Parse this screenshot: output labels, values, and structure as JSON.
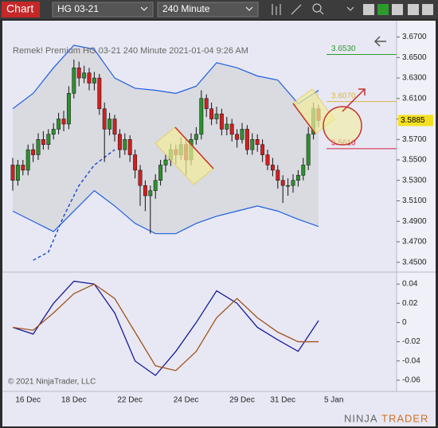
{
  "toolbar": {
    "title": "Chart",
    "instrument": "HG 03-21",
    "interval": "240 Minute"
  },
  "copyright": "© 2021 NinjaTrader, LLC",
  "logo": {
    "a": "NINJA",
    "b": "TRADER"
  },
  "chart_data": {
    "type": "candlestick",
    "title": "Remek!  Premium  HG 03-21  240 Minute  2021-01-04 9:26 AM",
    "categories": [
      null,
      null,
      null,
      "16 Dec",
      null,
      null,
      null,
      null,
      null,
      null,
      null,
      null,
      "18 Dec",
      null,
      null,
      null,
      null,
      null,
      null,
      null,
      null,
      null,
      null,
      "22 Dec",
      null,
      null,
      null,
      null,
      null,
      null,
      null,
      null,
      null,
      null,
      "24 Dec",
      null,
      null,
      null,
      null,
      null,
      null,
      null,
      null,
      null,
      null,
      "29 Dec",
      null,
      null,
      null,
      null,
      null,
      null,
      null,
      "31 Dec",
      null,
      null,
      null,
      null,
      null,
      null,
      null,
      null,
      null,
      "5 Jan"
    ],
    "ohlc": [
      [
        3.545,
        3.552,
        3.52,
        3.53
      ],
      [
        3.53,
        3.55,
        3.525,
        3.545
      ],
      [
        3.545,
        3.55,
        3.535,
        3.54
      ],
      [
        3.54,
        3.565,
        3.535,
        3.56
      ],
      [
        3.56,
        3.566,
        3.548,
        3.555
      ],
      [
        3.555,
        3.576,
        3.55,
        3.57
      ],
      [
        3.57,
        3.578,
        3.56,
        3.565
      ],
      [
        3.565,
        3.58,
        3.56,
        3.575
      ],
      [
        3.575,
        3.586,
        3.57,
        3.58
      ],
      [
        3.58,
        3.596,
        3.575,
        3.59
      ],
      [
        3.59,
        3.598,
        3.578,
        3.585
      ],
      [
        3.585,
        3.622,
        3.58,
        3.615
      ],
      [
        3.615,
        3.648,
        3.61,
        3.64
      ],
      [
        3.64,
        3.646,
        3.622,
        3.63
      ],
      [
        3.63,
        3.642,
        3.625,
        3.635
      ],
      [
        3.635,
        3.64,
        3.618,
        3.625
      ],
      [
        3.625,
        3.636,
        3.618,
        3.63
      ],
      [
        3.63,
        3.634,
        3.594,
        3.6
      ],
      [
        3.6,
        3.606,
        3.548,
        3.58
      ],
      [
        3.58,
        3.596,
        3.574,
        3.59
      ],
      [
        3.59,
        3.594,
        3.568,
        3.575
      ],
      [
        3.575,
        3.58,
        3.552,
        3.56
      ],
      [
        3.56,
        3.576,
        3.555,
        3.57
      ],
      [
        3.57,
        3.574,
        3.548,
        3.555
      ],
      [
        3.555,
        3.56,
        3.532,
        3.54
      ],
      [
        3.54,
        3.545,
        3.505,
        3.525
      ],
      [
        3.525,
        3.53,
        3.5,
        3.515
      ],
      [
        3.515,
        3.525,
        3.478,
        3.52
      ],
      [
        3.52,
        3.536,
        3.512,
        3.53
      ],
      [
        3.53,
        3.55,
        3.525,
        3.545
      ],
      [
        3.545,
        3.556,
        3.538,
        3.55
      ],
      [
        3.55,
        3.566,
        3.544,
        3.56
      ],
      [
        3.56,
        3.565,
        3.546,
        3.555
      ],
      [
        3.555,
        3.572,
        3.55,
        3.565
      ],
      [
        3.565,
        3.57,
        3.535,
        3.55
      ],
      [
        3.55,
        3.576,
        3.545,
        3.57
      ],
      [
        3.57,
        3.582,
        3.565,
        3.575
      ],
      [
        3.575,
        3.618,
        3.57,
        3.61
      ],
      [
        3.61,
        3.614,
        3.592,
        3.6
      ],
      [
        3.6,
        3.606,
        3.584,
        3.59
      ],
      [
        3.59,
        3.602,
        3.585,
        3.595
      ],
      [
        3.595,
        3.6,
        3.574,
        3.58
      ],
      [
        3.58,
        3.592,
        3.574,
        3.585
      ],
      [
        3.585,
        3.59,
        3.568,
        3.575
      ],
      [
        3.575,
        3.58,
        3.562,
        3.57
      ],
      [
        3.57,
        3.586,
        3.566,
        3.58
      ],
      [
        3.58,
        3.584,
        3.555,
        3.56
      ],
      [
        3.56,
        3.576,
        3.555,
        3.57
      ],
      [
        3.57,
        3.575,
        3.558,
        3.565
      ],
      [
        3.565,
        3.57,
        3.548,
        3.555
      ],
      [
        3.555,
        3.56,
        3.54,
        3.545
      ],
      [
        3.545,
        3.552,
        3.534,
        3.54
      ],
      [
        3.54,
        3.545,
        3.522,
        3.53
      ],
      [
        3.53,
        3.535,
        3.508,
        3.525
      ],
      [
        3.525,
        3.532,
        3.515,
        3.525
      ],
      [
        3.525,
        3.536,
        3.518,
        3.53
      ],
      [
        3.53,
        3.54,
        3.524,
        3.535
      ],
      [
        3.535,
        3.552,
        3.53,
        3.545
      ],
      [
        3.545,
        3.582,
        3.54,
        3.575
      ],
      [
        3.575,
        3.606,
        3.57,
        3.6
      ],
      [
        3.6,
        3.604,
        3.582,
        3.5885
      ],
      null,
      null,
      null
    ],
    "up_color": "#2f8f2f",
    "down_color": "#d02020",
    "ylim": [
      3.442,
      3.679
    ],
    "yticks": [
      {
        "value": 3.45,
        "label": "3.4500"
      },
      {
        "value": 3.47,
        "label": "3.4700"
      },
      {
        "value": 3.49,
        "label": "3.4900"
      },
      {
        "value": 3.51,
        "label": "3.5100"
      },
      {
        "value": 3.53,
        "label": "3.5300"
      },
      {
        "value": 3.55,
        "label": "3.5500"
      },
      {
        "value": 3.57,
        "label": "3.5700"
      },
      {
        "value": 3.59,
        "label": "3.5900"
      },
      {
        "value": 3.61,
        "label": "3.6100"
      },
      {
        "value": 3.63,
        "label": "3.6300"
      },
      {
        "value": 3.65,
        "label": "3.6500"
      },
      {
        "value": 3.67,
        "label": "3.6700"
      }
    ],
    "bands": {
      "color": "#1e5fe0",
      "x": [
        0,
        4,
        8,
        12,
        16,
        20,
        24,
        28,
        32,
        36,
        40,
        44,
        48,
        52,
        56,
        60
      ],
      "upper": [
        3.6,
        3.615,
        3.64,
        3.662,
        3.658,
        3.63,
        3.62,
        3.618,
        3.615,
        3.622,
        3.645,
        3.64,
        3.632,
        3.628,
        3.605,
        3.618
      ],
      "lower": [
        3.5,
        3.49,
        3.48,
        3.5,
        3.52,
        3.505,
        3.488,
        3.478,
        3.478,
        3.488,
        3.495,
        3.5,
        3.505,
        3.5,
        3.492,
        3.485
      ]
    },
    "ma": {
      "color": "#2050d0",
      "x": [
        4,
        7,
        10,
        13,
        16,
        20
      ],
      "values": [
        3.452,
        3.46,
        3.495,
        3.525,
        3.545,
        3.56
      ]
    },
    "price_markers": [
      {
        "value": 3.653,
        "label": "3.6530",
        "color": "#2e9a2e"
      },
      {
        "value": 3.607,
        "label": "3.6070",
        "color": "#d8b840"
      },
      {
        "value": 3.5885,
        "label": "3.5885",
        "color": "#f5e020"
      },
      {
        "value": 3.561,
        "label": "3.5610",
        "color": "#d02040"
      }
    ],
    "oscillator": {
      "ylim": [
        -0.07,
        0.05
      ],
      "yticks": [
        0.04,
        0.02,
        0,
        -0.02,
        -0.04,
        -0.06
      ],
      "x": [
        0,
        4,
        8,
        12,
        16,
        20,
        24,
        28,
        32,
        36,
        40,
        44,
        48,
        52,
        56,
        60
      ],
      "series": [
        {
          "color": "#1a1a9a",
          "values": [
            -0.005,
            -0.012,
            0.02,
            0.043,
            0.04,
            0.01,
            -0.04,
            -0.055,
            -0.03,
            0.0,
            0.033,
            0.02,
            -0.005,
            -0.018,
            -0.03,
            0.002
          ]
        },
        {
          "color": "#a0521a",
          "values": [
            -0.005,
            -0.008,
            0.01,
            0.03,
            0.04,
            0.025,
            -0.01,
            -0.045,
            -0.05,
            -0.03,
            0.005,
            0.025,
            0.005,
            -0.01,
            -0.02,
            -0.02
          ]
        }
      ]
    }
  }
}
